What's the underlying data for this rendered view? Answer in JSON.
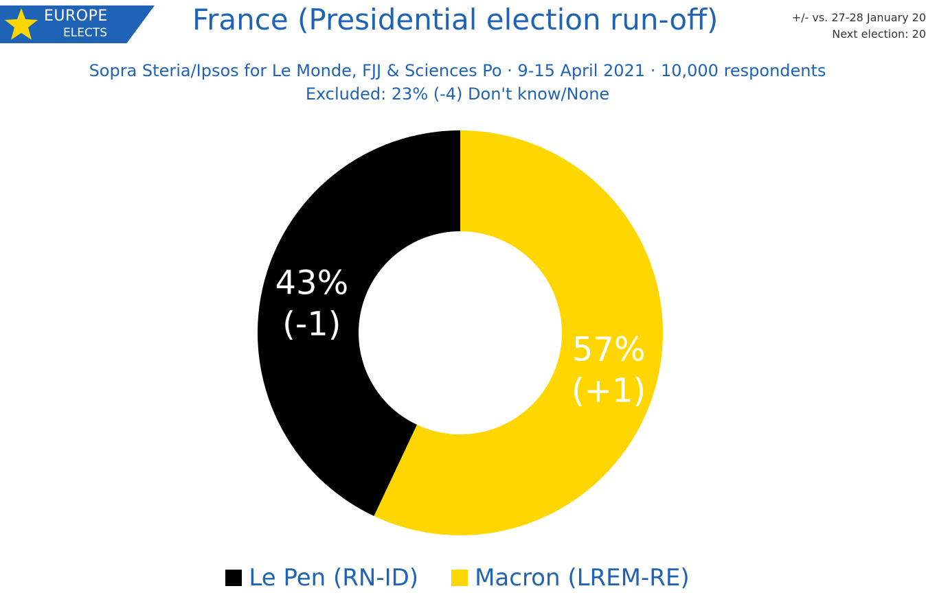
{
  "brand": {
    "line1": "EUROPE",
    "line2": "ELECTS",
    "color": "#1e63b6"
  },
  "title": "France (Presidential election run-off)",
  "note": {
    "line1": "+/- vs. 27-28 January 20",
    "line2": "Next election: 20"
  },
  "subtitle": {
    "line1": "Sopra Steria/Ipsos for Le Monde, FJJ & Sciences Po · 9-15 April 2021 · 10,000 respondents",
    "line2": "Excluded: 23% (-4) Don't know/None"
  },
  "chart_data": {
    "type": "pie",
    "donut": true,
    "slices": [
      {
        "name": "Le Pen (RN-ID)",
        "value": 43,
        "label": "43%",
        "change": "(-1)",
        "color": "#000000"
      },
      {
        "name": "Macron (LREM-RE)",
        "value": 57,
        "label": "57%",
        "change": "(+1)",
        "color": "#ffd600"
      }
    ],
    "legend_position": "bottom"
  },
  "legend": [
    {
      "label": "Le Pen (RN-ID)",
      "color": "#000000"
    },
    {
      "label": "Macron (LREM-RE)",
      "color": "#ffd600"
    }
  ]
}
